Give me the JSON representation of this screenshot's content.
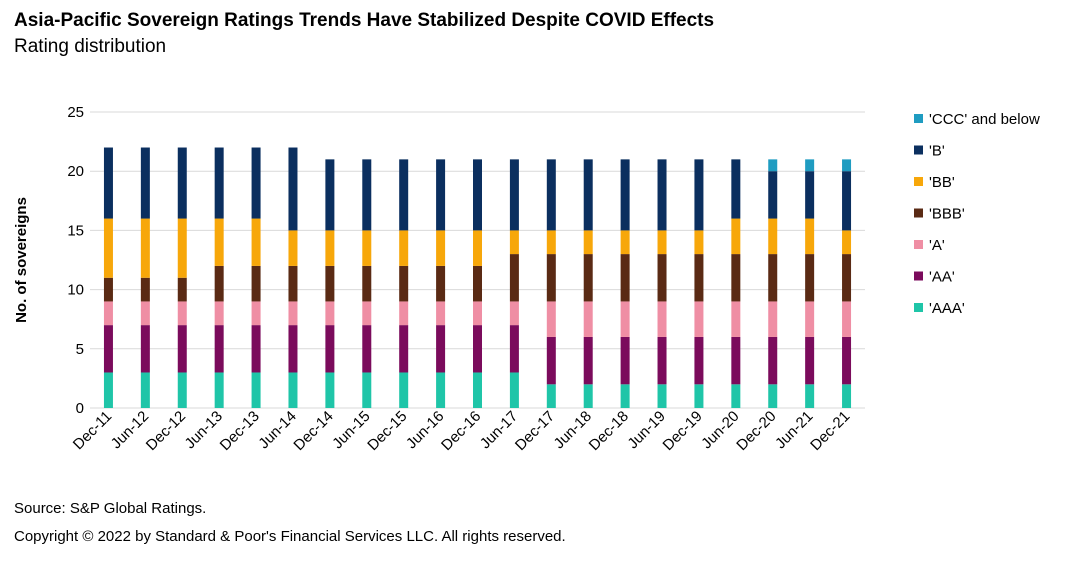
{
  "title": "Asia-Pacific Sovereign Ratings Trends Have Stabilized Despite COVID Effects",
  "subtitle": "Rating distribution",
  "source": "Source: S&P Global Ratings.",
  "copyright": "Copyright © 2022 by Standard & Poor's Financial Services LLC. All rights reserved.",
  "chart_data": {
    "type": "bar",
    "stacked": true,
    "title": "Asia-Pacific Sovereign Ratings Trends Have Stabilized Despite COVID Effects",
    "subtitle": "Rating distribution",
    "xlabel": "",
    "ylabel": "No. of sovereigns",
    "ylim": [
      0,
      25
    ],
    "yticks": [
      0,
      5,
      10,
      15,
      20,
      25
    ],
    "grid": true,
    "legend_position": "right",
    "categories": [
      "Dec-11",
      "Jun-12",
      "Dec-12",
      "Jun-13",
      "Dec-13",
      "Jun-14",
      "Dec-14",
      "Jun-15",
      "Dec-15",
      "Jun-16",
      "Dec-16",
      "Jun-17",
      "Dec-17",
      "Jun-18",
      "Dec-18",
      "Jun-19",
      "Dec-19",
      "Jun-20",
      "Dec-20",
      "Jun-21",
      "Dec-21"
    ],
    "series": [
      {
        "name": "'AAA'",
        "color": "#1fc5a8",
        "values": [
          3,
          3,
          3,
          3,
          3,
          3,
          3,
          3,
          3,
          3,
          3,
          3,
          2,
          2,
          2,
          2,
          2,
          2,
          2,
          2,
          2
        ]
      },
      {
        "name": "'AA'",
        "color": "#7b0b5c",
        "values": [
          4,
          4,
          4,
          4,
          4,
          4,
          4,
          4,
          4,
          4,
          4,
          4,
          4,
          4,
          4,
          4,
          4,
          4,
          4,
          4,
          4
        ]
      },
      {
        "name": "'A'",
        "color": "#ef8ea4",
        "values": [
          2,
          2,
          2,
          2,
          2,
          2,
          2,
          2,
          2,
          2,
          2,
          2,
          3,
          3,
          3,
          3,
          3,
          3,
          3,
          3,
          3
        ]
      },
      {
        "name": "'BBB'",
        "color": "#5a2a14",
        "values": [
          2,
          2,
          2,
          3,
          3,
          3,
          3,
          3,
          3,
          3,
          3,
          4,
          4,
          4,
          4,
          4,
          4,
          4,
          4,
          4,
          4
        ]
      },
      {
        "name": "'BB'",
        "color": "#f7a70a",
        "values": [
          5,
          5,
          5,
          4,
          4,
          3,
          3,
          3,
          3,
          3,
          3,
          2,
          2,
          2,
          2,
          2,
          2,
          3,
          3,
          3,
          2
        ]
      },
      {
        "name": "'B'",
        "color": "#0b2f5f",
        "values": [
          6,
          6,
          6,
          6,
          6,
          7,
          6,
          6,
          6,
          6,
          6,
          6,
          6,
          6,
          6,
          6,
          6,
          5,
          4,
          4,
          5
        ]
      },
      {
        "name": "'CCC' and below",
        "color": "#1f9cc1",
        "values": [
          0,
          0,
          0,
          0,
          0,
          0,
          0,
          0,
          0,
          0,
          0,
          0,
          0,
          0,
          0,
          0,
          0,
          0,
          1,
          1,
          1
        ]
      }
    ]
  }
}
